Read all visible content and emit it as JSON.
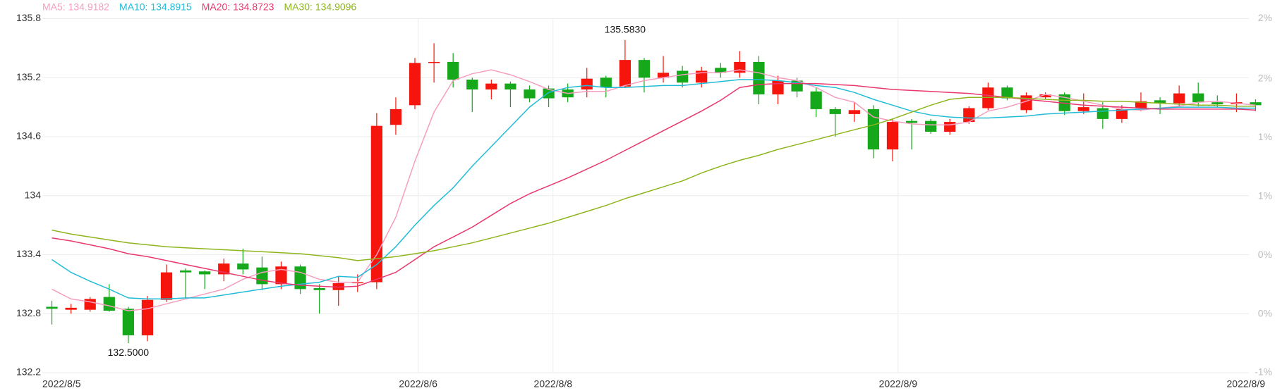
{
  "chart_data": {
    "type": "candlestick",
    "up_color": "#f5150c",
    "down_color": "#14a81a",
    "open": [
      132.87,
      132.84,
      132.84,
      132.97,
      132.85,
      132.58,
      132.94,
      133.24,
      133.23,
      133.2,
      133.31,
      133.27,
      133.1,
      133.28,
      133.06,
      133.04,
      133.11,
      133.12,
      134.72,
      134.92,
      135.35,
      135.36,
      135.18,
      135.08,
      135.14,
      135.08,
      135.09,
      135.08,
      135.08,
      135.2,
      135.11,
      135.38,
      135.2,
      135.27,
      135.15,
      135.3,
      135.25,
      135.36,
      135.03,
      135.17,
      135.06,
      134.88,
      134.83,
      134.88,
      134.47,
      134.76,
      134.76,
      134.65,
      134.75,
      134.89,
      135.1,
      134.87,
      135.0,
      135.03,
      134.86,
      134.89,
      134.78,
      134.89,
      134.97,
      134.94,
      135.04,
      134.95,
      134.93,
      134.95
    ],
    "high": [
      132.93,
      132.9,
      132.97,
      133.1,
      132.87,
      132.98,
      133.3,
      133.26,
      133.24,
      133.36,
      133.46,
      133.38,
      133.33,
      133.3,
      133.1,
      133.18,
      133.2,
      134.84,
      135.0,
      135.4,
      135.55,
      135.45,
      135.2,
      135.18,
      135.16,
      135.12,
      135.12,
      135.14,
      135.3,
      135.22,
      135.583,
      135.4,
      135.42,
      135.32,
      135.31,
      135.35,
      135.47,
      135.42,
      135.22,
      135.2,
      135.1,
      134.9,
      134.95,
      134.92,
      134.78,
      134.78,
      134.78,
      134.78,
      134.91,
      135.15,
      135.12,
      135.05,
      135.05,
      135.05,
      135.04,
      134.95,
      134.92,
      135.05,
      135.0,
      135.12,
      135.15,
      135.02,
      135.04,
      134.98
    ],
    "low": [
      132.69,
      132.8,
      132.82,
      132.82,
      132.5,
      132.52,
      132.92,
      132.96,
      133.05,
      133.13,
      133.2,
      133.04,
      133.05,
      133.0,
      132.8,
      132.88,
      133.02,
      133.05,
      134.62,
      134.88,
      135.15,
      135.1,
      134.85,
      134.98,
      134.9,
      134.95,
      134.9,
      134.95,
      135.0,
      135.0,
      135.1,
      135.05,
      135.15,
      135.1,
      135.1,
      135.2,
      135.2,
      134.93,
      134.93,
      135.0,
      134.8,
      134.6,
      134.75,
      134.38,
      134.35,
      134.47,
      134.63,
      134.62,
      134.73,
      134.87,
      134.97,
      134.84,
      134.98,
      134.82,
      134.83,
      134.68,
      134.74,
      134.86,
      134.83,
      134.9,
      134.91,
      134.9,
      134.85,
      134.86
    ],
    "close": [
      132.85,
      132.86,
      132.95,
      132.83,
      132.58,
      132.94,
      133.22,
      133.22,
      133.2,
      133.31,
      133.25,
      133.1,
      133.28,
      133.05,
      133.04,
      133.11,
      133.12,
      134.71,
      134.88,
      135.35,
      135.36,
      135.18,
      135.08,
      135.14,
      135.08,
      134.99,
      134.99,
      135.0,
      135.19,
      135.1,
      135.38,
      135.2,
      135.25,
      135.15,
      135.27,
      135.25,
      135.36,
      135.03,
      135.17,
      135.06,
      134.88,
      134.83,
      134.87,
      134.47,
      134.75,
      134.74,
      134.65,
      134.75,
      134.89,
      135.1,
      134.99,
      135.02,
      135.03,
      134.86,
      134.9,
      134.78,
      134.88,
      134.96,
      134.94,
      135.04,
      134.95,
      134.93,
      134.95,
      134.92
    ],
    "series": [
      {
        "name": "MA5: 134.9182",
        "color": "#f59ec0",
        "values": [
          133.05,
          132.95,
          132.92,
          132.88,
          132.83,
          132.85,
          132.9,
          132.95,
          133.0,
          133.05,
          133.15,
          133.22,
          133.25,
          133.22,
          133.15,
          133.12,
          133.12,
          133.4,
          133.78,
          134.35,
          134.85,
          135.17,
          135.24,
          135.28,
          135.23,
          135.16,
          135.08,
          135.04,
          135.06,
          135.06,
          135.12,
          135.17,
          135.2,
          135.23,
          135.25,
          135.25,
          135.28,
          135.25,
          135.2,
          135.17,
          135.1,
          135.0,
          134.95,
          134.8,
          134.76,
          134.73,
          134.72,
          134.72,
          134.75,
          134.86,
          134.9,
          134.96,
          135.03,
          135.0,
          134.96,
          134.92,
          134.88,
          134.87,
          134.89,
          134.91,
          134.95,
          134.96,
          134.94,
          134.92
        ]
      },
      {
        "name": "MA10: 134.8915",
        "color": "#22bcd6",
        "values": [
          133.35,
          133.22,
          133.13,
          133.05,
          132.96,
          132.95,
          132.95,
          132.96,
          132.96,
          132.99,
          133.02,
          133.05,
          133.08,
          133.1,
          133.12,
          133.18,
          133.17,
          133.3,
          133.48,
          133.7,
          133.9,
          134.08,
          134.3,
          134.5,
          134.7,
          134.9,
          135.05,
          135.1,
          135.12,
          135.1,
          135.1,
          135.11,
          135.12,
          135.12,
          135.14,
          135.16,
          135.18,
          135.18,
          135.17,
          135.15,
          135.12,
          135.1,
          135.05,
          134.98,
          134.92,
          134.86,
          134.82,
          134.8,
          134.79,
          134.79,
          134.8,
          134.81,
          134.83,
          134.84,
          134.85,
          134.86,
          134.87,
          134.88,
          134.89,
          134.9,
          134.9,
          134.9,
          134.89,
          134.89
        ]
      },
      {
        "name": "MA20: 134.8723",
        "color": "#e8386d",
        "values": [
          133.57,
          133.54,
          133.5,
          133.46,
          133.41,
          133.38,
          133.34,
          133.3,
          133.26,
          133.22,
          133.18,
          133.14,
          133.11,
          133.09,
          133.08,
          133.07,
          133.08,
          133.15,
          133.22,
          133.35,
          133.48,
          133.58,
          133.68,
          133.8,
          133.92,
          134.02,
          134.1,
          134.18,
          134.27,
          134.36,
          134.46,
          134.56,
          134.66,
          134.76,
          134.86,
          134.97,
          135.1,
          135.13,
          135.14,
          135.14,
          135.14,
          135.13,
          135.12,
          135.1,
          135.08,
          135.07,
          135.06,
          135.05,
          135.04,
          135.02,
          135.0,
          134.98,
          134.96,
          134.94,
          134.92,
          134.91,
          134.9,
          134.89,
          134.88,
          134.88,
          134.88,
          134.88,
          134.88,
          134.87
        ]
      },
      {
        "name": "MA30: 134.9096",
        "color": "#8fb51e",
        "values": [
          133.65,
          133.61,
          133.58,
          133.55,
          133.52,
          133.5,
          133.48,
          133.47,
          133.46,
          133.45,
          133.44,
          133.43,
          133.42,
          133.41,
          133.39,
          133.37,
          133.34,
          133.36,
          133.38,
          133.41,
          133.44,
          133.48,
          133.52,
          133.57,
          133.62,
          133.67,
          133.72,
          133.78,
          133.84,
          133.9,
          133.97,
          134.03,
          134.09,
          134.15,
          134.23,
          134.3,
          134.36,
          134.41,
          134.47,
          134.52,
          134.57,
          134.62,
          134.67,
          134.72,
          134.78,
          134.85,
          134.92,
          134.98,
          135.0,
          135.0,
          135.0,
          134.99,
          134.98,
          134.97,
          134.97,
          134.96,
          134.96,
          134.95,
          134.94,
          134.93,
          134.92,
          134.92,
          134.91,
          134.91
        ]
      }
    ],
    "annotations": [
      {
        "text": "135.5830",
        "index": 30,
        "value": 135.583,
        "position": "above"
      },
      {
        "text": "132.5000",
        "index": 4,
        "value": 132.5,
        "position": "below"
      }
    ],
    "xlim": [
      -0.5,
      63.5
    ],
    "xticks": [
      {
        "value": -0.5,
        "label": "2022/8/5"
      },
      {
        "value": 19.17,
        "label": "2022/8/6"
      },
      {
        "value": 26.23,
        "label": "2022/8/8"
      },
      {
        "value": 44.29,
        "label": "2022/8/9"
      },
      {
        "value": 63.5,
        "label": "2022/8/9"
      }
    ],
    "ylim": [
      132.2,
      135.8
    ],
    "yticks": [
      135.8,
      135.2,
      134.6,
      134,
      133.4,
      132.8,
      132.2
    ],
    "y2lim": [
      -0.6,
      2.11
    ],
    "y2ticks": [
      {
        "value": 2.11,
        "label": "2%"
      },
      {
        "value": 1.65,
        "label": "2%"
      },
      {
        "value": 1.2,
        "label": "1%"
      },
      {
        "value": 0.75,
        "label": "1%"
      },
      {
        "value": 0.3,
        "label": "0%"
      },
      {
        "value": -0.15,
        "label": "0%"
      },
      {
        "value": -0.6,
        "label": "-1%"
      }
    ],
    "grid": true
  }
}
